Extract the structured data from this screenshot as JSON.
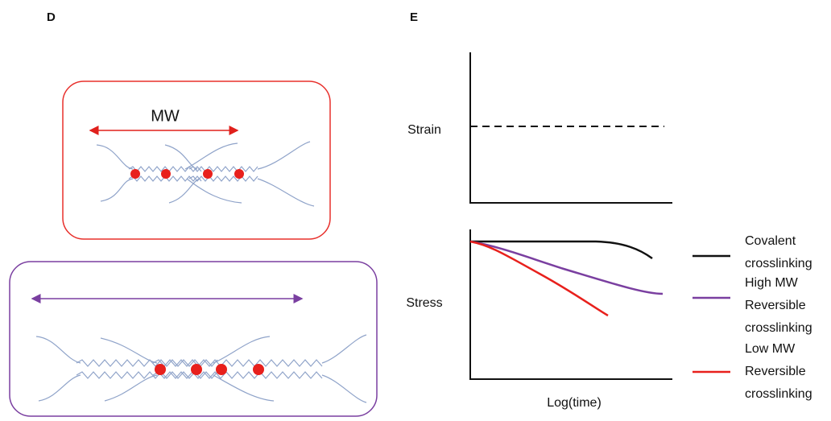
{
  "panel_d": {
    "label": "D",
    "arrow_label": "MW"
  },
  "panel_e": {
    "label": "E",
    "top_axis_label": "Strain",
    "bottom_axis_label": "Stress",
    "x_axis_label": "Log(time)",
    "legend": [
      {
        "lines": [
          "Covalent",
          "crosslinking"
        ]
      },
      {
        "lines": [
          "High MW",
          "Reversible",
          "crosslinking"
        ]
      },
      {
        "lines": [
          "Low MW",
          "Reversible",
          "crosslinking"
        ]
      }
    ]
  }
}
